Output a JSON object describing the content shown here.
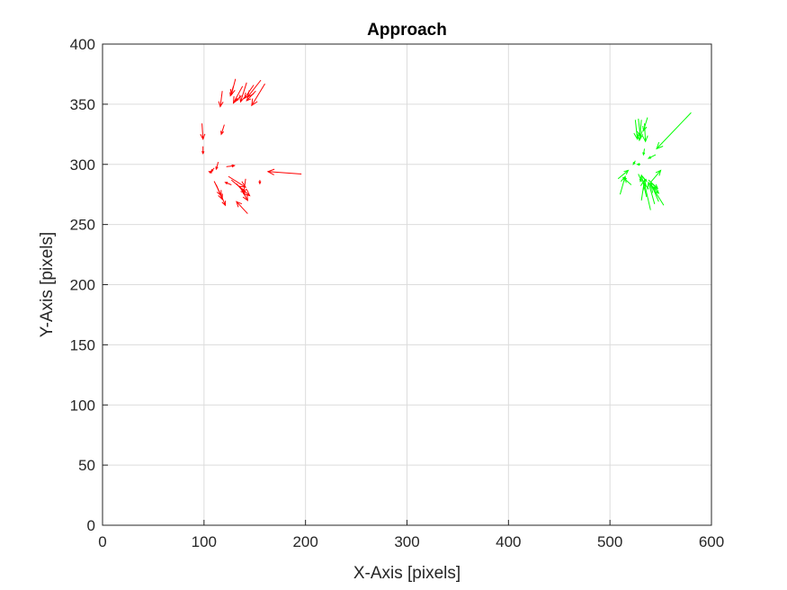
{
  "chart_data": {
    "type": "quiver",
    "title": "Approach",
    "xlabel": "X-Axis [pixels]",
    "ylabel": "Y-Axis [pixels]",
    "xlim": [
      0,
      600
    ],
    "ylim": [
      0,
      400
    ],
    "x_ticks": [
      "0",
      "100",
      "200",
      "300",
      "400",
      "500",
      "600"
    ],
    "y_ticks": [
      "0",
      "50",
      "100",
      "150",
      "200",
      "250",
      "300",
      "350",
      "400"
    ],
    "grid": true,
    "series": [
      {
        "color": "#ff0000",
        "vectors": [
          {
            "x": 131,
            "y": 371,
            "u": -4,
            "v": -13
          },
          {
            "x": 138,
            "y": 365,
            "u": -9,
            "v": -14
          },
          {
            "x": 149,
            "y": 366,
            "u": -9,
            "v": -11
          },
          {
            "x": 156,
            "y": 370,
            "u": -13,
            "v": -14
          },
          {
            "x": 160,
            "y": 367,
            "u": -13,
            "v": -18
          },
          {
            "x": 142,
            "y": 368,
            "u": -6,
            "v": -16
          },
          {
            "x": 137,
            "y": 357,
            "u": -6,
            "v": -4
          },
          {
            "x": 151,
            "y": 361,
            "u": -9,
            "v": -8
          },
          {
            "x": 118,
            "y": 361,
            "u": -2,
            "v": -13
          },
          {
            "x": 129,
            "y": 365,
            "u": -3,
            "v": -8
          },
          {
            "x": 120,
            "y": 333,
            "u": -3,
            "v": -8
          },
          {
            "x": 98,
            "y": 334,
            "u": 1,
            "v": -13
          },
          {
            "x": 99,
            "y": 315,
            "u": 0,
            "v": -6
          },
          {
            "x": 196,
            "y": 292,
            "u": -33,
            "v": 2
          },
          {
            "x": 122,
            "y": 298,
            "u": 8,
            "v": 1
          },
          {
            "x": 114,
            "y": 302,
            "u": -2,
            "v": -6
          },
          {
            "x": 110,
            "y": 297,
            "u": -3,
            "v": -3
          },
          {
            "x": 108,
            "y": 293,
            "u": -3,
            "v": 1
          },
          {
            "x": 110,
            "y": 286,
            "u": 7,
            "v": -12
          },
          {
            "x": 112,
            "y": 283,
            "u": 6,
            "v": -12
          },
          {
            "x": 116,
            "y": 276,
            "u": 5,
            "v": -10
          },
          {
            "x": 124,
            "y": 290,
            "u": 17,
            "v": -9
          },
          {
            "x": 127,
            "y": 287,
            "u": 18,
            "v": -13
          },
          {
            "x": 132,
            "y": 284,
            "u": 8,
            "v": -8
          },
          {
            "x": 135,
            "y": 282,
            "u": 8,
            "v": -12
          },
          {
            "x": 127,
            "y": 283,
            "u": -6,
            "v": 2
          },
          {
            "x": 141,
            "y": 288,
            "u": -2,
            "v": -12
          },
          {
            "x": 143,
            "y": 259,
            "u": -11,
            "v": 10
          },
          {
            "x": 155,
            "y": 287,
            "u": 0,
            "v": -3
          }
        ]
      },
      {
        "color": "#00ff00",
        "vectors": [
          {
            "x": 580,
            "y": 343,
            "u": -34,
            "v": -30
          },
          {
            "x": 525,
            "y": 337,
            "u": 2,
            "v": -16
          },
          {
            "x": 528,
            "y": 338,
            "u": 2,
            "v": -15
          },
          {
            "x": 531,
            "y": 337,
            "u": -2,
            "v": -17
          },
          {
            "x": 537,
            "y": 339,
            "u": -4,
            "v": -11
          },
          {
            "x": 534,
            "y": 334,
            "u": 1,
            "v": -15
          },
          {
            "x": 534,
            "y": 313,
            "u": -1,
            "v": -5
          },
          {
            "x": 545,
            "y": 308,
            "u": -7,
            "v": -3
          },
          {
            "x": 525,
            "y": 303,
            "u": -2,
            "v": -3
          },
          {
            "x": 530,
            "y": 300,
            "u": -3,
            "v": 0
          },
          {
            "x": 508,
            "y": 288,
            "u": 10,
            "v": 7
          },
          {
            "x": 510,
            "y": 275,
            "u": 5,
            "v": 15
          },
          {
            "x": 521,
            "y": 283,
            "u": -8,
            "v": 6
          },
          {
            "x": 540,
            "y": 285,
            "u": 10,
            "v": 10
          },
          {
            "x": 528,
            "y": 292,
            "u": 3,
            "v": -6
          },
          {
            "x": 532,
            "y": 290,
            "u": 4,
            "v": -4
          },
          {
            "x": 536,
            "y": 273,
            "u": -5,
            "v": 18
          },
          {
            "x": 540,
            "y": 262,
            "u": -6,
            "v": 22
          },
          {
            "x": 531,
            "y": 270,
            "u": 3,
            "v": 17
          },
          {
            "x": 544,
            "y": 267,
            "u": -6,
            "v": 18
          },
          {
            "x": 548,
            "y": 269,
            "u": -8,
            "v": 16
          },
          {
            "x": 553,
            "y": 266,
            "u": -12,
            "v": 16
          },
          {
            "x": 541,
            "y": 282,
            "u": 7,
            "v": -6
          },
          {
            "x": 538,
            "y": 287,
            "u": 9,
            "v": -7
          }
        ]
      }
    ]
  }
}
